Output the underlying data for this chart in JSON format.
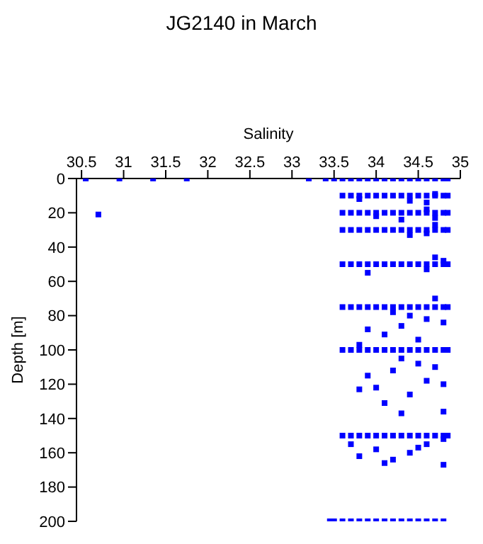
{
  "chart_data": {
    "type": "scatter",
    "title": "JG2140 in March",
    "xlabel": "Salinity",
    "ylabel": "Depth [m]",
    "xlim": [
      30.44,
      35
    ],
    "xticks": [
      30.5,
      31,
      31.5,
      32,
      32.5,
      33,
      33.5,
      34,
      34.5,
      35
    ],
    "ylim": [
      200,
      0
    ],
    "yticks": [
      0,
      20,
      40,
      60,
      80,
      100,
      120,
      140,
      160,
      180,
      200
    ],
    "marker": "square",
    "grid": false,
    "legend": false,
    "series": [
      {
        "color": "#0000ff",
        "x": [
          30.55,
          30.95,
          31.35,
          31.75,
          33.2,
          33.4,
          33.5,
          33.6,
          33.7,
          33.8,
          33.9,
          34.0,
          34.1,
          34.2,
          34.3,
          34.4,
          34.5,
          34.6,
          34.7,
          34.8,
          34.85,
          33.6,
          33.7,
          33.8,
          33.9,
          34.0,
          34.1,
          34.2,
          34.3,
          34.4,
          34.5,
          34.6,
          34.7,
          34.8,
          34.85,
          33.8,
          34.4,
          34.6,
          34.7,
          30.7,
          33.6,
          33.7,
          33.8,
          33.9,
          34.0,
          34.1,
          34.2,
          34.3,
          34.4,
          34.5,
          34.6,
          34.7,
          34.8,
          34.85,
          34.0,
          34.3,
          34.7,
          34.6,
          33.6,
          33.7,
          33.8,
          33.9,
          34.0,
          34.1,
          34.2,
          34.3,
          34.4,
          34.5,
          34.6,
          34.7,
          34.8,
          34.85,
          34.4,
          34.7,
          34.6,
          33.6,
          33.7,
          33.8,
          33.9,
          34.0,
          34.1,
          34.2,
          34.3,
          34.4,
          34.5,
          34.6,
          34.7,
          34.8,
          34.85,
          34.7,
          34.6,
          33.9,
          34.8,
          33.6,
          33.7,
          33.8,
          33.9,
          34.0,
          34.1,
          34.2,
          34.3,
          34.4,
          34.5,
          34.6,
          34.7,
          34.8,
          34.85,
          34.2,
          34.4,
          34.6,
          34.8,
          34.3,
          33.9,
          34.1,
          34.7,
          34.5,
          33.8,
          33.6,
          33.7,
          33.8,
          33.9,
          34.0,
          34.1,
          34.2,
          34.3,
          34.4,
          34.5,
          34.6,
          34.7,
          34.8,
          34.85,
          34.3,
          34.5,
          34.7,
          34.2,
          33.9,
          34.6,
          34.0,
          34.8,
          34.4,
          33.8,
          34.1,
          34.3,
          34.8,
          33.6,
          33.7,
          33.8,
          33.9,
          34.0,
          34.1,
          34.2,
          34.3,
          34.4,
          34.5,
          34.6,
          34.7,
          34.8,
          34.85,
          33.7,
          34.0,
          34.4,
          34.6,
          34.8,
          33.8,
          34.2,
          34.5,
          34.8,
          34.1,
          33.45,
          33.5,
          33.6,
          33.7,
          33.8,
          33.9,
          34.0,
          34.1,
          34.2,
          34.3,
          34.4,
          34.5,
          34.6,
          34.7,
          34.8
        ],
        "values": [
          0,
          0,
          0,
          0,
          0,
          0,
          0,
          0,
          0,
          0,
          0,
          0,
          0,
          0,
          0,
          0,
          0,
          0,
          0,
          0,
          0,
          10,
          10,
          10,
          10,
          10,
          10,
          10,
          10,
          10,
          10,
          10,
          10,
          10,
          10,
          12,
          13,
          14,
          9,
          21,
          20,
          20,
          20,
          20,
          20,
          20,
          20,
          20,
          20,
          20,
          20,
          20,
          20,
          20,
          22,
          24,
          23,
          18,
          30,
          30,
          30,
          30,
          30,
          30,
          30,
          30,
          30,
          30,
          30,
          30,
          30,
          30,
          33,
          27,
          32,
          50,
          50,
          50,
          50,
          50,
          50,
          50,
          50,
          50,
          50,
          50,
          50,
          50,
          50,
          46,
          53,
          55,
          48,
          75,
          75,
          75,
          75,
          75,
          75,
          75,
          75,
          75,
          75,
          75,
          75,
          75,
          75,
          78,
          80,
          82,
          84,
          86,
          88,
          91,
          70,
          94,
          97,
          100,
          100,
          100,
          100,
          100,
          100,
          100,
          100,
          100,
          100,
          100,
          100,
          100,
          100,
          105,
          108,
          110,
          112,
          115,
          118,
          122,
          120,
          126,
          123,
          131,
          137,
          136,
          150,
          150,
          150,
          150,
          150,
          150,
          150,
          150,
          150,
          150,
          150,
          150,
          150,
          150,
          155,
          158,
          160,
          155,
          152,
          162,
          164,
          157,
          167,
          166,
          200,
          200,
          200,
          200,
          200,
          200,
          200,
          200,
          200,
          200,
          200,
          200,
          200,
          200,
          200
        ]
      }
    ]
  }
}
